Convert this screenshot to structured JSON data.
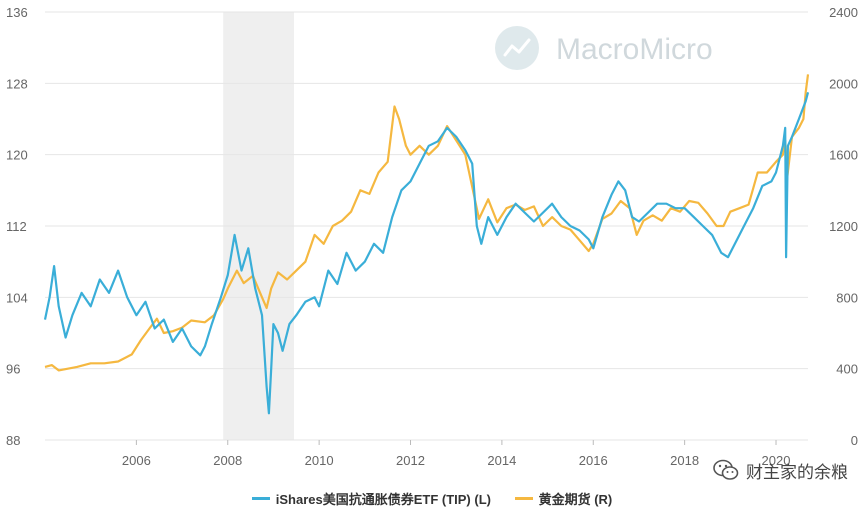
{
  "watermark": {
    "text": "MacroMicro",
    "icon": "chart-line-icon"
  },
  "credit": {
    "text": "财主家的余粮",
    "icon": "wechat-icon"
  },
  "colors": {
    "tip": "#3aaed8",
    "gold": "#f5b840",
    "recession": "#efefef",
    "grid": "#e6e6e6"
  },
  "chart_data": {
    "type": "line",
    "title": "",
    "xlabel": "",
    "x_ticks": [
      "2006",
      "2008",
      "2010",
      "2012",
      "2014",
      "2016",
      "2018",
      "2020"
    ],
    "y_left": {
      "ticks": [
        "88",
        "96",
        "104",
        "112",
        "120",
        "128",
        "136"
      ],
      "range": [
        88,
        136
      ]
    },
    "y_right": {
      "ticks": [
        "0",
        "400",
        "800",
        "1200",
        "1600",
        "2000",
        "2400"
      ],
      "range": [
        0,
        2400
      ]
    },
    "x_range": [
      2004.0,
      2020.7
    ],
    "recession": [
      2007.9,
      2009.45
    ],
    "grid": true,
    "legend_position": "bottom-center",
    "series": [
      {
        "name": "iShares美国抗通胀债券ETF (TIP) (L)",
        "axis": "left",
        "color": "#3aaed8",
        "points": [
          [
            2004.0,
            101.5
          ],
          [
            2004.1,
            104
          ],
          [
            2004.2,
            107.5
          ],
          [
            2004.3,
            103
          ],
          [
            2004.45,
            99.5
          ],
          [
            2004.6,
            102
          ],
          [
            2004.8,
            104.5
          ],
          [
            2005.0,
            103
          ],
          [
            2005.2,
            106
          ],
          [
            2005.4,
            104.5
          ],
          [
            2005.6,
            107
          ],
          [
            2005.8,
            104
          ],
          [
            2006.0,
            102
          ],
          [
            2006.2,
            103.5
          ],
          [
            2006.4,
            100.5
          ],
          [
            2006.6,
            101.5
          ],
          [
            2006.8,
            99
          ],
          [
            2007.0,
            100.5
          ],
          [
            2007.2,
            98.5
          ],
          [
            2007.4,
            97.5
          ],
          [
            2007.5,
            98.5
          ],
          [
            2007.65,
            101
          ],
          [
            2007.85,
            104
          ],
          [
            2008.0,
            106.5
          ],
          [
            2008.15,
            111
          ],
          [
            2008.3,
            107
          ],
          [
            2008.45,
            109.5
          ],
          [
            2008.6,
            105
          ],
          [
            2008.75,
            102
          ],
          [
            2008.85,
            94
          ],
          [
            2008.9,
            91
          ],
          [
            2008.95,
            96
          ],
          [
            2009.0,
            101
          ],
          [
            2009.1,
            100
          ],
          [
            2009.2,
            98
          ],
          [
            2009.35,
            101
          ],
          [
            2009.5,
            102
          ],
          [
            2009.7,
            103.5
          ],
          [
            2009.9,
            104
          ],
          [
            2010.0,
            103
          ],
          [
            2010.2,
            107
          ],
          [
            2010.4,
            105.5
          ],
          [
            2010.6,
            109
          ],
          [
            2010.8,
            107
          ],
          [
            2011.0,
            108
          ],
          [
            2011.2,
            110
          ],
          [
            2011.4,
            109
          ],
          [
            2011.6,
            113
          ],
          [
            2011.8,
            116
          ],
          [
            2012.0,
            117
          ],
          [
            2012.2,
            119
          ],
          [
            2012.4,
            121
          ],
          [
            2012.6,
            121.5
          ],
          [
            2012.8,
            123
          ],
          [
            2013.0,
            122
          ],
          [
            2013.2,
            120.5
          ],
          [
            2013.35,
            119
          ],
          [
            2013.45,
            112
          ],
          [
            2013.55,
            110
          ],
          [
            2013.7,
            113
          ],
          [
            2013.9,
            111
          ],
          [
            2014.1,
            113
          ],
          [
            2014.3,
            114.5
          ],
          [
            2014.5,
            113.5
          ],
          [
            2014.7,
            112.5
          ],
          [
            2014.9,
            113.5
          ],
          [
            2015.1,
            114.5
          ],
          [
            2015.3,
            113
          ],
          [
            2015.5,
            112
          ],
          [
            2015.7,
            111.5
          ],
          [
            2015.9,
            110.5
          ],
          [
            2016.0,
            109.5
          ],
          [
            2016.2,
            113
          ],
          [
            2016.4,
            115.5
          ],
          [
            2016.55,
            117
          ],
          [
            2016.7,
            116
          ],
          [
            2016.85,
            113
          ],
          [
            2017.0,
            112.5
          ],
          [
            2017.2,
            113.5
          ],
          [
            2017.4,
            114.5
          ],
          [
            2017.6,
            114.5
          ],
          [
            2017.8,
            114
          ],
          [
            2018.0,
            114
          ],
          [
            2018.2,
            113
          ],
          [
            2018.4,
            112
          ],
          [
            2018.6,
            111
          ],
          [
            2018.8,
            109
          ],
          [
            2018.95,
            108.5
          ],
          [
            2019.1,
            110
          ],
          [
            2019.3,
            112
          ],
          [
            2019.5,
            114
          ],
          [
            2019.7,
            116.5
          ],
          [
            2019.9,
            117
          ],
          [
            2020.0,
            118
          ],
          [
            2020.15,
            121
          ],
          [
            2020.2,
            123
          ],
          [
            2020.22,
            108.5
          ],
          [
            2020.26,
            121
          ],
          [
            2020.35,
            122
          ],
          [
            2020.5,
            124
          ],
          [
            2020.65,
            126
          ],
          [
            2020.7,
            127
          ]
        ]
      },
      {
        "name": "黄金期货 (R)",
        "axis": "right",
        "color": "#f5b840",
        "points": [
          [
            2004.0,
            410
          ],
          [
            2004.15,
            420
          ],
          [
            2004.3,
            390
          ],
          [
            2004.5,
            400
          ],
          [
            2004.7,
            410
          ],
          [
            2005.0,
            430
          ],
          [
            2005.3,
            430
          ],
          [
            2005.6,
            440
          ],
          [
            2005.9,
            480
          ],
          [
            2006.1,
            560
          ],
          [
            2006.3,
            630
          ],
          [
            2006.45,
            680
          ],
          [
            2006.6,
            600
          ],
          [
            2006.8,
            610
          ],
          [
            2007.0,
            630
          ],
          [
            2007.2,
            670
          ],
          [
            2007.5,
            660
          ],
          [
            2007.7,
            700
          ],
          [
            2007.9,
            790
          ],
          [
            2008.0,
            850
          ],
          [
            2008.2,
            950
          ],
          [
            2008.35,
            880
          ],
          [
            2008.55,
            920
          ],
          [
            2008.75,
            800
          ],
          [
            2008.85,
            740
          ],
          [
            2008.95,
            850
          ],
          [
            2009.1,
            940
          ],
          [
            2009.3,
            900
          ],
          [
            2009.5,
            950
          ],
          [
            2009.7,
            1000
          ],
          [
            2009.9,
            1150
          ],
          [
            2010.1,
            1100
          ],
          [
            2010.3,
            1200
          ],
          [
            2010.5,
            1230
          ],
          [
            2010.7,
            1280
          ],
          [
            2010.9,
            1400
          ],
          [
            2011.1,
            1380
          ],
          [
            2011.3,
            1500
          ],
          [
            2011.5,
            1560
          ],
          [
            2011.65,
            1870
          ],
          [
            2011.75,
            1800
          ],
          [
            2011.9,
            1650
          ],
          [
            2012.0,
            1600
          ],
          [
            2012.2,
            1650
          ],
          [
            2012.4,
            1600
          ],
          [
            2012.6,
            1650
          ],
          [
            2012.8,
            1760
          ],
          [
            2013.0,
            1680
          ],
          [
            2013.2,
            1600
          ],
          [
            2013.35,
            1420
          ],
          [
            2013.5,
            1240
          ],
          [
            2013.7,
            1350
          ],
          [
            2013.9,
            1220
          ],
          [
            2014.1,
            1300
          ],
          [
            2014.3,
            1320
          ],
          [
            2014.5,
            1290
          ],
          [
            2014.7,
            1310
          ],
          [
            2014.9,
            1200
          ],
          [
            2015.1,
            1250
          ],
          [
            2015.3,
            1200
          ],
          [
            2015.5,
            1180
          ],
          [
            2015.7,
            1120
          ],
          [
            2015.9,
            1060
          ],
          [
            2016.0,
            1100
          ],
          [
            2016.2,
            1240
          ],
          [
            2016.4,
            1270
          ],
          [
            2016.6,
            1340
          ],
          [
            2016.8,
            1300
          ],
          [
            2016.95,
            1150
          ],
          [
            2017.1,
            1230
          ],
          [
            2017.3,
            1260
          ],
          [
            2017.5,
            1230
          ],
          [
            2017.7,
            1300
          ],
          [
            2017.9,
            1280
          ],
          [
            2018.1,
            1340
          ],
          [
            2018.3,
            1330
          ],
          [
            2018.5,
            1270
          ],
          [
            2018.7,
            1200
          ],
          [
            2018.85,
            1200
          ],
          [
            2019.0,
            1280
          ],
          [
            2019.2,
            1300
          ],
          [
            2019.4,
            1320
          ],
          [
            2019.6,
            1500
          ],
          [
            2019.8,
            1500
          ],
          [
            2020.0,
            1560
          ],
          [
            2020.15,
            1600
          ],
          [
            2020.2,
            1680
          ],
          [
            2020.25,
            1480
          ],
          [
            2020.35,
            1700
          ],
          [
            2020.5,
            1750
          ],
          [
            2020.6,
            1800
          ],
          [
            2020.65,
            1950
          ],
          [
            2020.7,
            2050
          ]
        ]
      }
    ]
  }
}
